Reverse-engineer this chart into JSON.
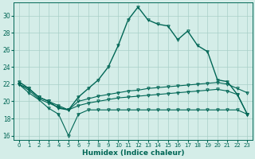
{
  "xlabel": "Humidex (Indice chaleur)",
  "background_color": "#d4ede8",
  "grid_color": "#a8cfc8",
  "line_color": "#006655",
  "xlim": [
    -0.5,
    23.5
  ],
  "ylim": [
    15.5,
    31.5
  ],
  "xticks": [
    0,
    1,
    2,
    3,
    4,
    5,
    6,
    7,
    8,
    9,
    10,
    11,
    12,
    13,
    14,
    15,
    16,
    17,
    18,
    19,
    20,
    21,
    22,
    23
  ],
  "yticks": [
    16,
    18,
    20,
    22,
    24,
    26,
    28,
    30
  ],
  "curve_main": {
    "x": [
      0,
      1,
      2,
      3,
      4,
      5,
      6,
      7,
      8,
      9,
      10,
      11,
      12,
      13,
      14,
      15,
      16,
      17,
      18,
      19,
      20,
      21,
      22,
      23
    ],
    "y": [
      22.3,
      21.5,
      20.5,
      20.0,
      19.2,
      19.0,
      20.5,
      21.5,
      22.5,
      24.0,
      26.5,
      29.5,
      31.0,
      29.5,
      29.0,
      28.8,
      27.2,
      28.2,
      26.5,
      25.8,
      22.5,
      22.3,
      20.8,
      18.5
    ]
  },
  "curve_upper_flat": {
    "x": [
      0,
      1,
      2,
      3,
      4,
      5,
      6,
      7,
      8,
      9,
      10,
      11,
      12,
      13,
      14,
      15,
      16,
      17,
      18,
      19,
      20,
      21,
      22,
      23
    ],
    "y": [
      22.0,
      21.5,
      20.5,
      20.0,
      19.5,
      19.0,
      20.0,
      20.3,
      20.6,
      20.8,
      21.0,
      21.2,
      21.3,
      21.5,
      21.6,
      21.7,
      21.8,
      21.9,
      22.0,
      22.1,
      22.2,
      22.0,
      21.5,
      21.0
    ]
  },
  "curve_mid_flat": {
    "x": [
      0,
      1,
      2,
      3,
      4,
      5,
      6,
      7,
      8,
      9,
      10,
      11,
      12,
      13,
      14,
      15,
      16,
      17,
      18,
      19,
      20,
      21,
      22,
      23
    ],
    "y": [
      22.0,
      21.3,
      20.3,
      19.8,
      19.3,
      19.0,
      19.5,
      19.8,
      20.0,
      20.2,
      20.4,
      20.5,
      20.6,
      20.7,
      20.8,
      20.9,
      21.0,
      21.1,
      21.2,
      21.3,
      21.4,
      21.2,
      20.8,
      18.5
    ]
  },
  "curve_bottom": {
    "x": [
      0,
      1,
      2,
      3,
      4,
      5,
      6,
      7,
      8,
      9,
      10,
      11,
      12,
      13,
      14,
      15,
      16,
      17,
      18,
      19,
      20,
      21,
      22,
      23
    ],
    "y": [
      22.0,
      21.0,
      20.2,
      19.2,
      18.5,
      16.0,
      18.5,
      19.0,
      19.0,
      19.0,
      19.0,
      19.0,
      19.0,
      19.0,
      19.0,
      19.0,
      19.0,
      19.0,
      19.0,
      19.0,
      19.0,
      19.0,
      19.0,
      18.5
    ]
  }
}
